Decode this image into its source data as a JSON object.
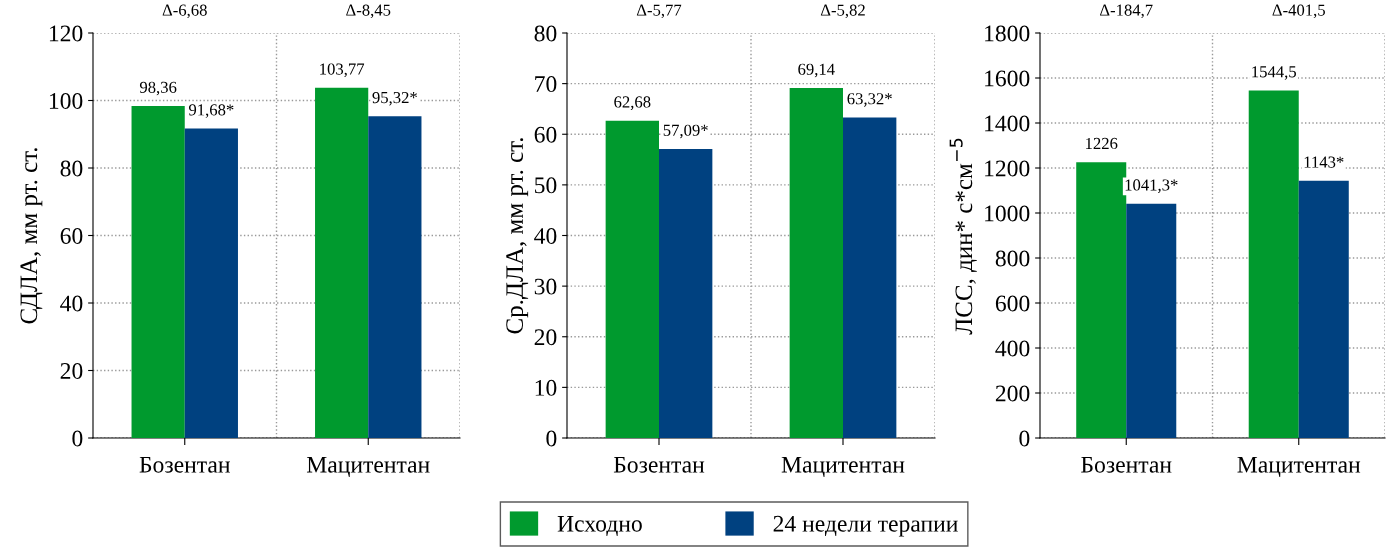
{
  "chart_data": [
    {
      "type": "bar",
      "ylabel": "СДЛА, мм рт. ст.",
      "categories": [
        "Бозентан",
        "Мацитентан"
      ],
      "ylim": [
        0,
        120
      ],
      "yticks": [
        0,
        20,
        40,
        60,
        80,
        100,
        120
      ],
      "grid": true,
      "legend": "bottom",
      "series": [
        {
          "name": "Исходно",
          "color": "#009a2e",
          "values": [
            98.36,
            103.77
          ],
          "value_labels": [
            "98,36",
            "103,77"
          ]
        },
        {
          "name": "24 недели терапии",
          "color": "#004180",
          "values": [
            91.68,
            95.32
          ],
          "value_labels": [
            "91,68*",
            "95,32*"
          ]
        }
      ],
      "annotations": [
        "Δ-6,68",
        "Δ-8,45"
      ]
    },
    {
      "type": "bar",
      "ylabel": "Ср.ДЛА, мм рт. ст.",
      "categories": [
        "Бозентан",
        "Мацитентан"
      ],
      "ylim": [
        0,
        80
      ],
      "yticks": [
        0,
        10,
        20,
        30,
        40,
        50,
        60,
        70,
        80
      ],
      "grid": true,
      "series": [
        {
          "color": "#009a2e",
          "values": [
            62.68,
            69.14
          ],
          "value_labels": [
            "62,68",
            "69,14"
          ]
        },
        {
          "color": "#004180",
          "values": [
            57.09,
            63.32
          ],
          "value_labels": [
            "57,09*",
            "63,32*"
          ]
        }
      ],
      "annotations": [
        "Δ-5,77",
        "Δ-5,82"
      ]
    },
    {
      "type": "bar",
      "ylabel": "ЛСС, дин* с*см$^{−5}$",
      "categories": [
        "Бозентан",
        "Мацитентан"
      ],
      "ylim": [
        0,
        1800
      ],
      "yticks": [
        0,
        200,
        400,
        600,
        800,
        1000,
        1200,
        1400,
        1600,
        1800
      ],
      "grid": true,
      "series": [
        {
          "color": "#009a2e",
          "values": [
            1226,
            1544.5
          ],
          "value_labels": [
            "1226",
            "1544,5"
          ]
        },
        {
          "color": "#004180",
          "values": [
            1041.3,
            1143
          ],
          "value_labels": [
            "1041,3*",
            "1143*"
          ]
        }
      ],
      "annotations": [
        "Δ-184,7",
        "Δ-401,5"
      ]
    }
  ]
}
